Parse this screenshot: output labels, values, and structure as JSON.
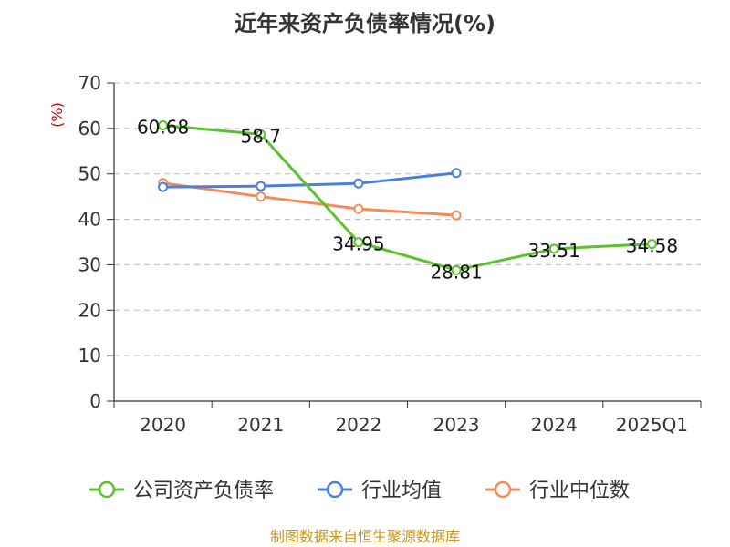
{
  "chart_data": {
    "type": "line",
    "title": "近年来资产负债率情况(%)",
    "ylabel": "(%)",
    "categories": [
      "2020",
      "2021",
      "2022",
      "2023",
      "2024",
      "2025Q1"
    ],
    "ylim": [
      0,
      70
    ],
    "yticks": [
      0,
      10,
      20,
      30,
      40,
      50,
      60,
      70
    ],
    "grid": true,
    "legend_position": "bottom",
    "series": [
      {
        "name": "公司资产负债率",
        "color": "#5cc12f",
        "values": [
          60.68,
          58.7,
          34.95,
          28.81,
          33.51,
          34.58
        ],
        "labels": [
          "60.68",
          "58.7",
          "34.95",
          "28.81",
          "33.51",
          "34.58"
        ]
      },
      {
        "name": "行业均值",
        "color": "#4a7fdc",
        "values": [
          47.1,
          47.3,
          47.9,
          50.2,
          null,
          null
        ]
      },
      {
        "name": "行业中位数",
        "color": "#f28c5b",
        "values": [
          48.0,
          45.0,
          42.3,
          40.9,
          null,
          null
        ]
      }
    ]
  },
  "source": "制图数据来自恒生聚源数据库"
}
